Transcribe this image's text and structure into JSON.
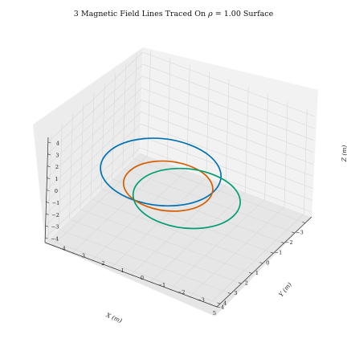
{
  "chart_data": {
    "type": "line3d",
    "title": "3 Magnetic Field Lines Traced On ρ = 1.00 Surface",
    "title_parts": {
      "prefix": "3 Magnetic Field Lines Traced On ",
      "symbol": "ρ",
      "eq": " = ",
      "value": "1.00",
      "suffix": " Surface"
    },
    "xlabel": "X (m)",
    "ylabel": "Y (m)",
    "zlabel": "Z (m)",
    "xlim": [
      -3.6,
      5.3
    ],
    "ylim": [
      -4.4,
      4.4
    ],
    "zlim": [
      -4.4,
      4.4
    ],
    "x_ticks": [
      -3,
      -2,
      -1,
      0,
      1,
      2,
      3,
      4,
      5
    ],
    "y_ticks": [
      -4,
      -3,
      -2,
      -1,
      0,
      1,
      2,
      3,
      4
    ],
    "z_ticks": [
      -4,
      -3,
      -2,
      -1,
      0,
      1,
      2,
      3,
      4
    ],
    "grid": true,
    "legend": "none",
    "series": [
      {
        "color": "#0072b2",
        "x": [
          -1.7,
          1.0,
          3.7,
          1.0
        ],
        "y": [
          0.9,
          -1.8,
          0.9,
          3.6
        ],
        "z": [
          0,
          0,
          0,
          0
        ]
      },
      {
        "color": "#d55e00",
        "x": [
          -0.8,
          1.2,
          3.2,
          1.2
        ],
        "y": [
          0.4,
          -1.6,
          0.4,
          2.4
        ],
        "z": [
          -0.7,
          -0.7,
          -0.7,
          -0.7
        ]
      },
      {
        "color": "#009e73",
        "x": [
          -1.5,
          0.9,
          3.3,
          0.9
        ],
        "y": [
          -0.4,
          -2.8,
          -0.4,
          2.0
        ],
        "z": [
          -1.5,
          -1.5,
          -1.5,
          -1.5
        ]
      }
    ]
  }
}
